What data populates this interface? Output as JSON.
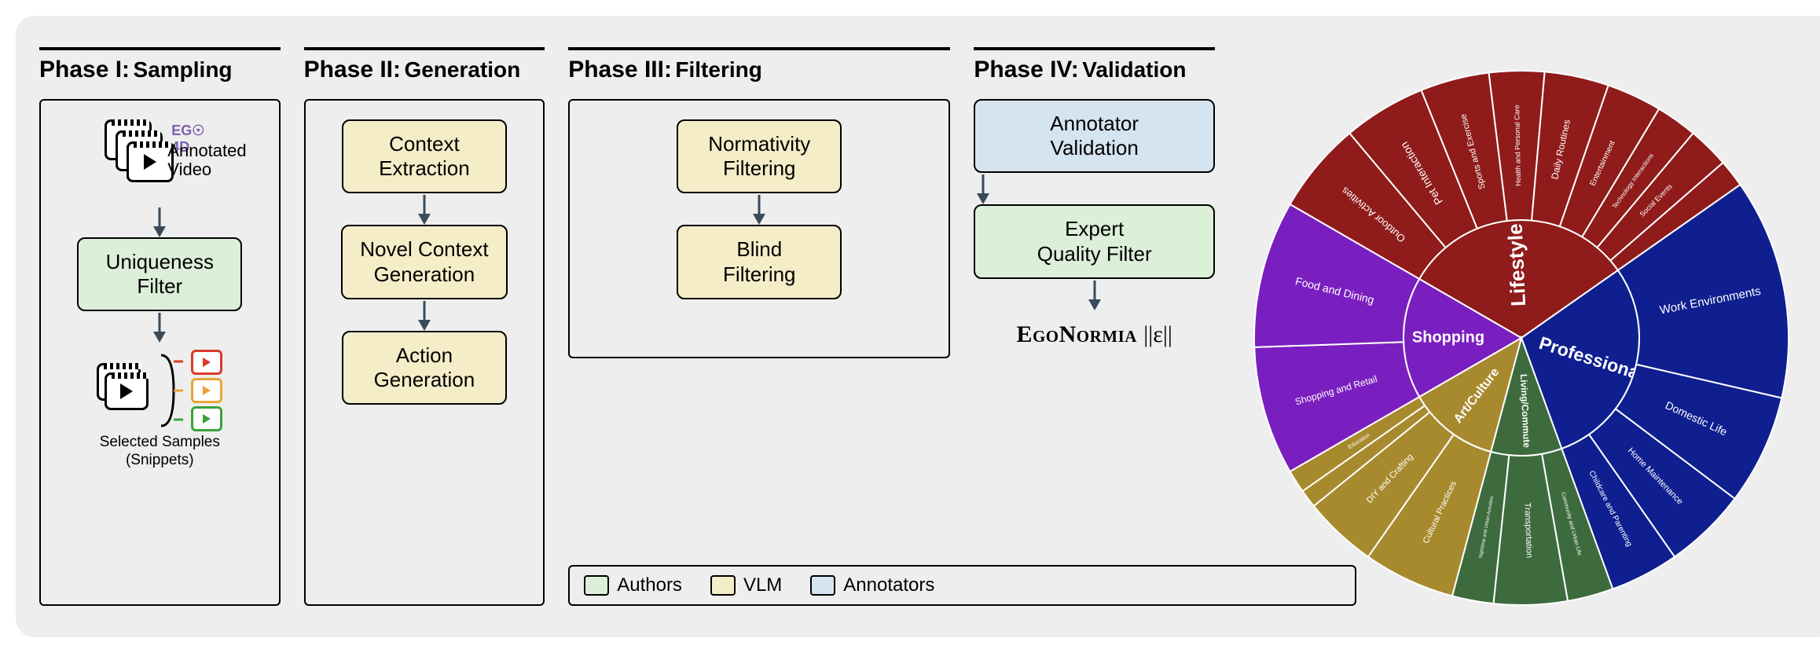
{
  "phases": [
    {
      "id": "I",
      "title": "Phase I:",
      "subtitle": "Sampling"
    },
    {
      "id": "II",
      "title": "Phase II:",
      "subtitle": "Generation"
    },
    {
      "id": "III",
      "title": "Phase III:",
      "subtitle": "Filtering"
    },
    {
      "id": "IV",
      "title": "Phase IV:",
      "subtitle": "Validation"
    }
  ],
  "phase1": {
    "logo": "EG☉ 4D",
    "annotated": "Annotated\nVideo",
    "box1": "Uniqueness\nFilter",
    "selected": "Selected Samples\n(Snippets)",
    "mini_colors": [
      "#d93a2b",
      "#e8a535",
      "#3aa23a"
    ]
  },
  "phase2": {
    "b1": "Context\nExtraction",
    "b2": "Novel Context\nGeneration",
    "b3": "Action\nGeneration"
  },
  "phase3": {
    "b1": "Normativity\nFiltering",
    "b2": "Blind\nFiltering"
  },
  "phase4": {
    "b1": "Annotator\nValidation",
    "b2": "Expert\nQuality Filter",
    "brand": "EgoNormia",
    "eps": "||ε||"
  },
  "legend": {
    "items": [
      {
        "label": "Authors",
        "color": "#dcefd9"
      },
      {
        "label": "VLM",
        "color": "#f5edc8"
      },
      {
        "label": "Annotators",
        "color": "#d6e4f0"
      }
    ]
  },
  "box_colors": {
    "green": "#dcefd9",
    "yellow": "#f5edc8",
    "blue": "#d6e4f0"
  },
  "arrow_color": "#3a4a5a",
  "sunburst": {
    "background": "#eeeeee",
    "inner": [
      {
        "label": "Lifestyle",
        "color": "#8f1b1b",
        "angle": 115,
        "fontsize": 26
      },
      {
        "label": "Professional",
        "color": "#0f1f8f",
        "angle": 105,
        "fontsize": 23
      },
      {
        "label": "Living/Commute",
        "color": "#3d6b3d",
        "angle": 35,
        "fontsize": 12
      },
      {
        "label": "Art/Culture",
        "color": "#a88a2e",
        "angle": 45,
        "fontsize": 16
      },
      {
        "label": "Shopping",
        "color": "#7a1fbf",
        "angle": 60,
        "fontsize": 20
      }
    ],
    "outer": [
      {
        "parent": 0,
        "label": "Outdoor Activities",
        "angle": 20,
        "fontsize": 13
      },
      {
        "parent": 0,
        "label": "Pet Interaction",
        "angle": 18,
        "fontsize": 14
      },
      {
        "parent": 0,
        "label": "Sports and Exercise",
        "angle": 15,
        "fontsize": 11
      },
      {
        "parent": 0,
        "label": "Health and Personal Care",
        "angle": 12,
        "fontsize": 9
      },
      {
        "parent": 0,
        "label": "Daily Routines",
        "angle": 14,
        "fontsize": 12
      },
      {
        "parent": 0,
        "label": "Entertainment",
        "angle": 12,
        "fontsize": 10
      },
      {
        "parent": 0,
        "label": "Technology Interactions",
        "angle": 9,
        "fontsize": 8
      },
      {
        "parent": 0,
        "label": "Social Events",
        "angle": 9,
        "fontsize": 9
      },
      {
        "parent": 0,
        "label": "",
        "angle": 6,
        "fontsize": 7
      },
      {
        "parent": 4,
        "label": "Shopping and Retail",
        "angle": 28,
        "fontsize": 12
      },
      {
        "parent": 4,
        "label": "Food and Dining",
        "angle": 32,
        "fontsize": 14
      },
      {
        "parent": 3,
        "label": "Cultural Practices",
        "angle": 20,
        "fontsize": 11
      },
      {
        "parent": 3,
        "label": "DIY and Crafting",
        "angle": 16,
        "fontsize": 11
      },
      {
        "parent": 3,
        "label": "",
        "angle": 4,
        "fontsize": 6
      },
      {
        "parent": 3,
        "label": "Education",
        "angle": 5,
        "fontsize": 7
      },
      {
        "parent": 2,
        "label": "Community and Urban Life",
        "angle": 10,
        "fontsize": 7
      },
      {
        "parent": 2,
        "label": "Transportation",
        "angle": 16,
        "fontsize": 11
      },
      {
        "parent": 2,
        "label": "Nighttime and Urban Activities",
        "angle": 9,
        "fontsize": 6
      },
      {
        "parent": 1,
        "label": "Work Environments",
        "angle": 48,
        "fontsize": 15
      },
      {
        "parent": 1,
        "label": "Domestic Life",
        "angle": 24,
        "fontsize": 14
      },
      {
        "parent": 1,
        "label": "Home Maintenance",
        "angle": 18,
        "fontsize": 11
      },
      {
        "parent": 1,
        "label": "Childcare and Parenting",
        "angle": 15,
        "fontsize": 10
      }
    ],
    "inner_radius_outer": 150,
    "outer_radius": 340,
    "stroke": "#ffffff",
    "stroke_width": 2,
    "start_angle_deg": -60
  }
}
